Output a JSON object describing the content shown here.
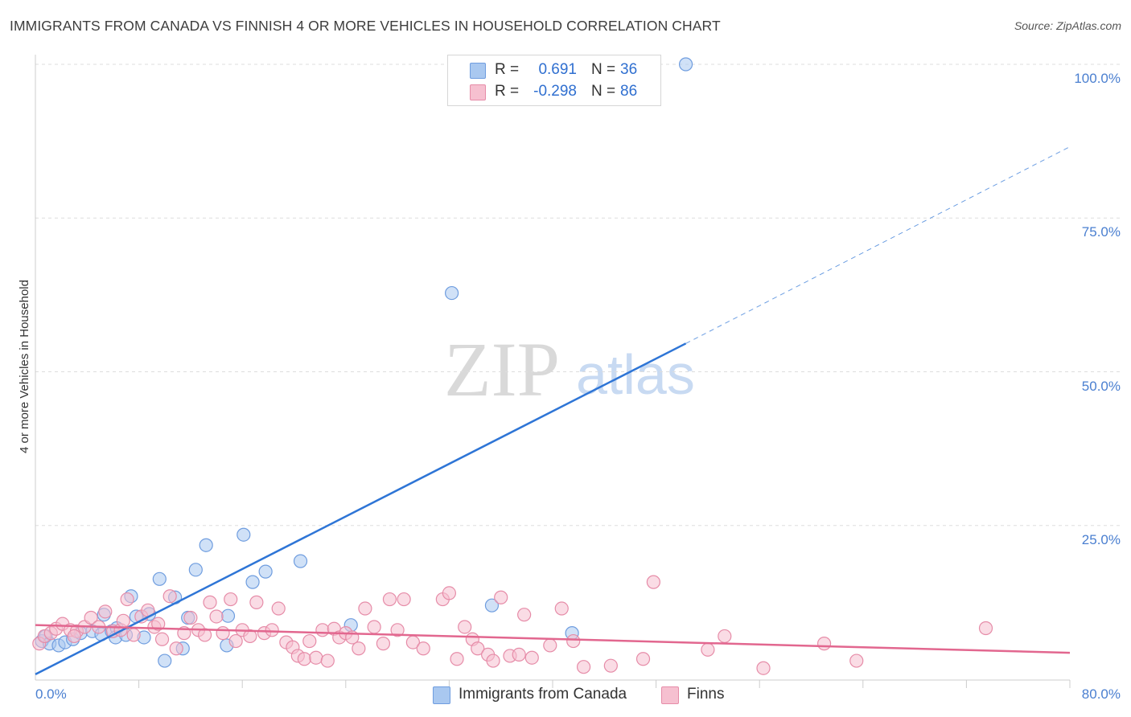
{
  "title": "IMMIGRANTS FROM CANADA VS FINNISH 4 OR MORE VEHICLES IN HOUSEHOLD CORRELATION CHART",
  "source": "Source: ZipAtlas.com",
  "watermark": {
    "zip": "ZIP",
    "atlas": "atlas"
  },
  "legend": {
    "rows": [
      {
        "r_label": "R =",
        "r_value": "0.691",
        "n_label": "N =",
        "n_value": "36",
        "color": "#a9c8f0",
        "stroke": "#6f9ddf"
      },
      {
        "r_label": "R =",
        "r_value": "-0.298",
        "n_label": "N =",
        "n_value": "86",
        "color": "#f6c0d0",
        "stroke": "#e68ca8"
      }
    ]
  },
  "bottom_legend": [
    {
      "label": "Immigrants from Canada",
      "color": "#a9c8f0",
      "stroke": "#6f9ddf"
    },
    {
      "label": "Finns",
      "color": "#f6c0d0",
      "stroke": "#e68ca8"
    }
  ],
  "chart_data": {
    "type": "scatter",
    "title": "IMMIGRANTS FROM CANADA VS FINNISH 4 OR MORE VEHICLES IN HOUSEHOLD CORRELATION CHART",
    "xlabel": "",
    "ylabel": "4 or more Vehicles in Household",
    "xlim": [
      0,
      80
    ],
    "ylim": [
      0,
      103
    ],
    "x_tick_labels": [
      "0.0%",
      "80.0%"
    ],
    "y_ticks": [
      25,
      50,
      75,
      100
    ],
    "y_tick_labels": [
      "25.0%",
      "50.0%",
      "75.0%",
      "100.0%"
    ],
    "grid": true,
    "series": [
      {
        "name": "Immigrants from Canada",
        "color": "#6f9ddf",
        "fill": "#a9c8f0",
        "points": [
          [
            0.5,
            6.2
          ],
          [
            0.8,
            7.0
          ],
          [
            1.1,
            5.8
          ],
          [
            1.8,
            5.5
          ],
          [
            2.3,
            6.0
          ],
          [
            2.9,
            6.5
          ],
          [
            3.5,
            7.5
          ],
          [
            4.4,
            7.8
          ],
          [
            5.1,
            7.3
          ],
          [
            5.3,
            10.5
          ],
          [
            5.9,
            7.8
          ],
          [
            6.3,
            8.3
          ],
          [
            6.2,
            6.8
          ],
          [
            7.0,
            7.2
          ],
          [
            7.4,
            13.5
          ],
          [
            7.8,
            10.2
          ],
          [
            8.4,
            6.8
          ],
          [
            8.8,
            10.6
          ],
          [
            9.6,
            16.3
          ],
          [
            10.0,
            3.0
          ],
          [
            10.8,
            13.3
          ],
          [
            11.4,
            5.0
          ],
          [
            11.8,
            10.0
          ],
          [
            12.4,
            17.8
          ],
          [
            13.2,
            21.8
          ],
          [
            14.8,
            5.5
          ],
          [
            14.9,
            10.3
          ],
          [
            16.1,
            23.5
          ],
          [
            16.8,
            15.8
          ],
          [
            17.8,
            17.5
          ],
          [
            20.5,
            19.2
          ],
          [
            24.4,
            8.8
          ],
          [
            32.2,
            62.8
          ],
          [
            35.3,
            12.0
          ],
          [
            41.5,
            7.5
          ],
          [
            50.3,
            100.0
          ]
        ]
      },
      {
        "name": "Finns",
        "color": "#e68ca8",
        "fill": "#f6c0d0",
        "points": [
          [
            0.3,
            5.8
          ],
          [
            0.7,
            7.0
          ],
          [
            1.2,
            7.5
          ],
          [
            1.6,
            8.2
          ],
          [
            2.1,
            9.0
          ],
          [
            2.7,
            8.0
          ],
          [
            3.2,
            7.8
          ],
          [
            3.8,
            8.5
          ],
          [
            4.3,
            10.0
          ],
          [
            4.9,
            8.5
          ],
          [
            5.4,
            11.0
          ],
          [
            6.0,
            7.8
          ],
          [
            6.6,
            8.0
          ],
          [
            7.1,
            13.0
          ],
          [
            7.6,
            7.2
          ],
          [
            8.2,
            10.2
          ],
          [
            8.7,
            11.2
          ],
          [
            9.2,
            8.5
          ],
          [
            9.8,
            6.5
          ],
          [
            10.4,
            13.5
          ],
          [
            10.9,
            5.0
          ],
          [
            11.5,
            7.5
          ],
          [
            12.0,
            10.0
          ],
          [
            12.6,
            8.0
          ],
          [
            13.1,
            7.2
          ],
          [
            13.5,
            12.5
          ],
          [
            14.0,
            10.2
          ],
          [
            14.5,
            7.5
          ],
          [
            15.1,
            13.0
          ],
          [
            15.5,
            6.2
          ],
          [
            16.0,
            8.0
          ],
          [
            16.6,
            7.0
          ],
          [
            17.1,
            12.5
          ],
          [
            17.7,
            7.5
          ],
          [
            18.3,
            8.0
          ],
          [
            18.8,
            11.5
          ],
          [
            19.4,
            6.0
          ],
          [
            19.9,
            5.2
          ],
          [
            20.3,
            3.8
          ],
          [
            20.8,
            3.3
          ],
          [
            21.2,
            6.2
          ],
          [
            21.7,
            3.5
          ],
          [
            22.2,
            8.0
          ],
          [
            22.6,
            3.0
          ],
          [
            23.1,
            8.2
          ],
          [
            23.5,
            6.8
          ],
          [
            24.0,
            7.5
          ],
          [
            24.5,
            6.8
          ],
          [
            25.0,
            5.0
          ],
          [
            25.5,
            11.5
          ],
          [
            26.2,
            8.5
          ],
          [
            26.9,
            5.8
          ],
          [
            27.4,
            13.0
          ],
          [
            28.0,
            8.0
          ],
          [
            28.5,
            13.0
          ],
          [
            29.2,
            6.0
          ],
          [
            30.0,
            5.0
          ],
          [
            31.5,
            13.0
          ],
          [
            32.0,
            14.0
          ],
          [
            32.6,
            3.3
          ],
          [
            33.2,
            8.5
          ],
          [
            33.8,
            6.5
          ],
          [
            34.2,
            5.0
          ],
          [
            35.0,
            4.0
          ],
          [
            35.4,
            3.0
          ],
          [
            36.0,
            13.3
          ],
          [
            36.7,
            3.8
          ],
          [
            37.4,
            4.0
          ],
          [
            37.8,
            10.5
          ],
          [
            38.4,
            3.5
          ],
          [
            39.8,
            5.5
          ],
          [
            40.7,
            11.5
          ],
          [
            41.6,
            6.2
          ],
          [
            42.4,
            2.0
          ],
          [
            44.5,
            2.2
          ],
          [
            47.0,
            3.3
          ],
          [
            47.8,
            15.8
          ],
          [
            52.0,
            4.8
          ],
          [
            53.3,
            7.0
          ],
          [
            56.3,
            1.8
          ],
          [
            61.0,
            5.8
          ],
          [
            63.5,
            3.0
          ],
          [
            73.5,
            8.3
          ],
          [
            3.0,
            7.0
          ],
          [
            6.8,
            9.5
          ],
          [
            9.5,
            9.0
          ]
        ]
      }
    ],
    "trend_lines": [
      {
        "series": "Immigrants from Canada",
        "from": [
          0,
          0.8
        ],
        "to": [
          50.3,
          54.6
        ],
        "dashed_to": [
          80,
          86.6
        ],
        "color": "#2e75d6"
      },
      {
        "series": "Finns",
        "from": [
          0,
          8.8
        ],
        "to": [
          80,
          4.3
        ],
        "color": "#e2678f"
      }
    ]
  }
}
